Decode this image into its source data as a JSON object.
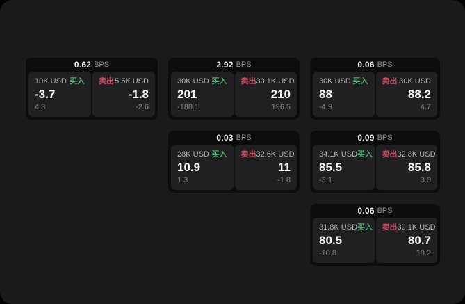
{
  "labels": {
    "bps_unit": "BPS",
    "buy": "买入",
    "sell": "卖出"
  },
  "colors": {
    "outer_background": "#000000",
    "surface_background": "#1a1a1b",
    "card_background": "#0d0d0e",
    "panel_background": "#202022",
    "buy_green": "#4aab6d",
    "sell_red": "#c8495e",
    "text_primary": "#f5f5f7",
    "text_secondary": "#b4b4b8",
    "text_muted": "#86868a"
  },
  "cards": [
    {
      "bps": "0.62",
      "buy": {
        "amount": "10K USD",
        "price": "-3.7",
        "delta": "4.3"
      },
      "sell": {
        "amount": "5.5K USD",
        "price": "-1.8",
        "delta": "-2.6"
      }
    },
    {
      "bps": "2.92",
      "buy": {
        "amount": "30K USD",
        "price": "201",
        "delta": "-188.1"
      },
      "sell": {
        "amount": "30.1K USD",
        "price": "210",
        "delta": "196.5"
      }
    },
    {
      "bps": "0.06",
      "buy": {
        "amount": "30K USD",
        "price": "88",
        "delta": "-4.9"
      },
      "sell": {
        "amount": "30K USD",
        "price": "88.2",
        "delta": "4.7"
      }
    },
    {
      "bps": "0.03",
      "buy": {
        "amount": "28K USD",
        "price": "10.9",
        "delta": "1.3"
      },
      "sell": {
        "amount": "32.6K USD",
        "price": "11",
        "delta": "-1.8"
      }
    },
    {
      "bps": "0.09",
      "buy": {
        "amount": "34.1K USD",
        "price": "85.5",
        "delta": "-3.1"
      },
      "sell": {
        "amount": "32.8K USD",
        "price": "85.8",
        "delta": "3.0"
      }
    },
    {
      "bps": "0.06",
      "buy": {
        "amount": "31.8K USD",
        "price": "80.5",
        "delta": "-10.8"
      },
      "sell": {
        "amount": "39.1K USD",
        "price": "80.7",
        "delta": "10.2"
      }
    }
  ]
}
